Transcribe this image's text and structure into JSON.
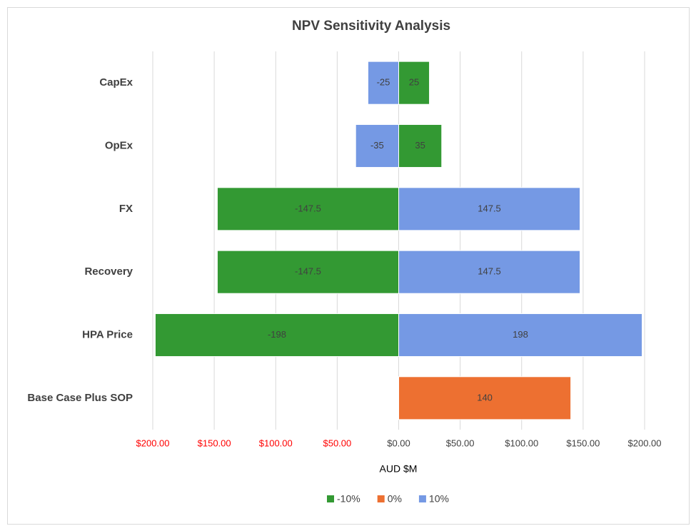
{
  "chart_data": {
    "type": "tornado",
    "title": "NPV Sensitivity Analysis",
    "x_label": "AUD $M",
    "categories": [
      "CapEx",
      "OpEx",
      "FX",
      "Recovery",
      "HPA Price",
      "Base Case Plus SOP"
    ],
    "series": [
      {
        "name": "-10%",
        "color": "#339933",
        "values": [
          25,
          35,
          -147.5,
          -147.5,
          -198,
          null
        ]
      },
      {
        "name": "0%",
        "color": "#ed7031",
        "values": [
          null,
          null,
          null,
          null,
          null,
          140
        ]
      },
      {
        "name": "10%",
        "color": "#7599e4",
        "values": [
          -25,
          -35,
          147.5,
          147.5,
          198,
          null
        ]
      }
    ],
    "xlim": [
      -200,
      200
    ],
    "xticks": [
      {
        "value": -200,
        "label": "$200.00"
      },
      {
        "value": -150,
        "label": "$150.00"
      },
      {
        "value": -100,
        "label": "$100.00"
      },
      {
        "value": -50,
        "label": "$50.00"
      },
      {
        "value": 0,
        "label": "$0.00"
      },
      {
        "value": 50,
        "label": "$50.00"
      },
      {
        "value": 100,
        "label": "$100.00"
      },
      {
        "value": 150,
        "label": "$150.00"
      },
      {
        "value": 200,
        "label": "$200.00"
      }
    ],
    "negative_tick_color": "#ff0000",
    "grid": true,
    "legend": "bottom"
  }
}
